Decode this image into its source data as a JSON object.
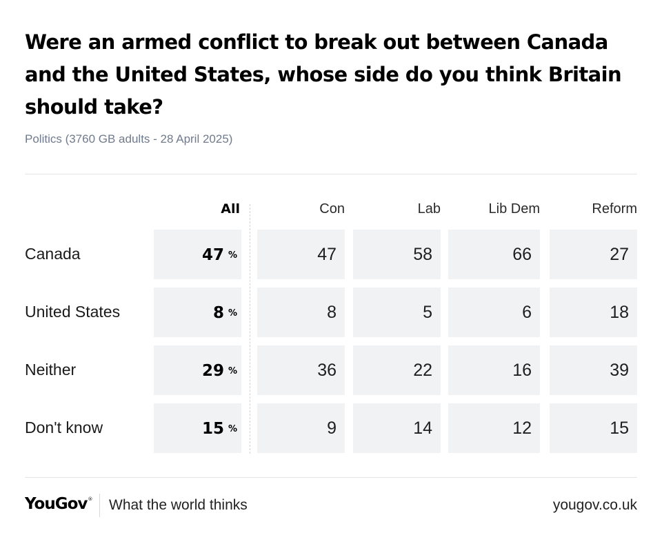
{
  "header": {
    "title": "Were an armed conflict to break out between Canada and the United States, whose side do you think Britain should take?",
    "subtitle": "Politics (3760 GB adults - 28 April 2025)"
  },
  "footer": {
    "logo": "YouGov",
    "tagline": "What the world thinks",
    "url": "yougov.co.uk"
  },
  "chart_data": {
    "type": "table",
    "title": "Were an armed conflict to break out between Canada and the United States, whose side do you think Britain should take?",
    "subtitle": "Politics (3760 GB adults - 28 April 2025)",
    "percent_symbol": "%",
    "columns": [
      "All",
      "Con",
      "Lab",
      "Lib Dem",
      "Reform"
    ],
    "rows": [
      {
        "label": "Canada",
        "values": [
          "47",
          "47",
          "58",
          "66",
          "27"
        ]
      },
      {
        "label": "United States",
        "values": [
          "8",
          "8",
          "5",
          "6",
          "18"
        ]
      },
      {
        "label": "Neither",
        "values": [
          "29",
          "36",
          "22",
          "16",
          "39"
        ]
      },
      {
        "label": "Don't know",
        "values": [
          "15",
          "9",
          "14",
          "12",
          "15"
        ]
      }
    ]
  }
}
